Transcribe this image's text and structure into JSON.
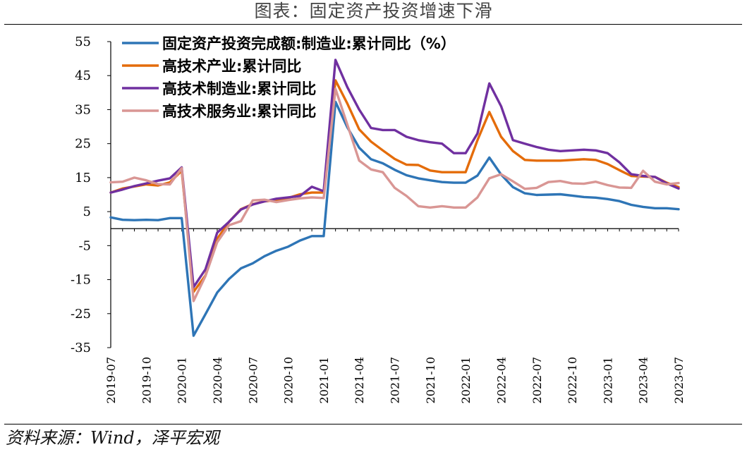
{
  "title": "图表：固定资产投资增速下滑",
  "source": "资料来源：Wind，泽平宏观",
  "chart_data": {
    "type": "line",
    "title": "图表：固定资产投资增速下滑",
    "xlabel": "",
    "ylabel": "",
    "ylim": [
      -35,
      55
    ],
    "y_ticks": [
      55,
      45,
      35,
      25,
      15,
      5,
      -5,
      -15,
      -25,
      -35
    ],
    "x": [
      "2019-07",
      "2019-08",
      "2019-09",
      "2019-10",
      "2019-11",
      "2019-12",
      "2020-01",
      "2020-02",
      "2020-03",
      "2020-04",
      "2020-05",
      "2020-06",
      "2020-07",
      "2020-08",
      "2020-09",
      "2020-10",
      "2020-11",
      "2020-12",
      "2021-01",
      "2021-02",
      "2021-03",
      "2021-04",
      "2021-05",
      "2021-06",
      "2021-07",
      "2021-08",
      "2021-09",
      "2021-10",
      "2021-11",
      "2021-12",
      "2022-01",
      "2022-02",
      "2022-03",
      "2022-04",
      "2022-05",
      "2022-06",
      "2022-07",
      "2022-08",
      "2022-09",
      "2022-10",
      "2022-11",
      "2022-12",
      "2023-01",
      "2023-02",
      "2023-03",
      "2023-04",
      "2023-05",
      "2023-06",
      "2023-07"
    ],
    "x_tick_labels": [
      "2019-07",
      "2019-10",
      "2020-01",
      "2020-04",
      "2020-07",
      "2020-10",
      "2021-01",
      "2021-04",
      "2021-07",
      "2021-10",
      "2022-01",
      "2022-04",
      "2022-07",
      "2022-10",
      "2023-01",
      "2023-04",
      "2023-07"
    ],
    "legend_position": "top-left",
    "grid": false,
    "series": [
      {
        "name": "固定资产投资完成额:制造业:累计同比（%）",
        "color": "#2e75b6",
        "values": [
          3.3,
          2.6,
          2.5,
          2.6,
          2.5,
          3.1,
          3.1,
          -31.5,
          -25.2,
          -18.8,
          -14.8,
          -11.7,
          -10.2,
          -8.1,
          -6.5,
          -5.3,
          -3.5,
          -2.2,
          -2.2,
          37.3,
          29.8,
          23.8,
          20.4,
          19.2,
          17.3,
          15.7,
          14.8,
          14.2,
          13.7,
          13.5,
          13.5,
          15.6,
          20.9,
          15.9,
          12.2,
          10.4,
          9.9,
          10.0,
          10.1,
          9.7,
          9.3,
          9.1,
          8.7,
          8.1,
          7.0,
          6.4,
          6.0,
          6.0,
          5.7
        ]
      },
      {
        "name": "高技术产业:累计同比",
        "color": "#e46c0a",
        "values": [
          10.6,
          11.8,
          12.4,
          13.0,
          12.7,
          13.6,
          17.0,
          -18.6,
          -13.8,
          -3.0,
          2.0,
          5.7,
          7.2,
          8.0,
          8.4,
          9.0,
          10.1,
          10.6,
          10.6,
          43.6,
          36.8,
          29.2,
          25.6,
          23.0,
          20.5,
          18.8,
          18.7,
          17.1,
          16.6,
          16.6,
          16.6,
          26.0,
          34.3,
          27.0,
          22.8,
          20.2,
          20.0,
          20.0,
          20.0,
          20.2,
          20.4,
          20.2,
          19.0,
          17.2,
          15.5,
          15.3,
          15.2,
          13.5,
          12.2
        ]
      },
      {
        "name": "高技术制造业:累计同比",
        "color": "#7030a0",
        "values": [
          10.6,
          11.5,
          12.5,
          13.3,
          14.1,
          14.8,
          18.0,
          -17.2,
          -12.0,
          -1.2,
          2.0,
          5.6,
          7.1,
          8.0,
          8.8,
          9.2,
          9.6,
          12.3,
          11.0,
          49.6,
          41.6,
          35.0,
          29.6,
          29.0,
          29.0,
          27.0,
          26.0,
          25.4,
          25.0,
          22.2,
          22.2,
          28.0,
          42.7,
          36.0,
          26.0,
          25.0,
          24.0,
          23.2,
          22.8,
          23.0,
          23.2,
          23.0,
          22.2,
          19.5,
          16.0,
          15.5,
          15.2,
          13.3,
          11.8
        ]
      },
      {
        "name": "高技术服务业:累计同比",
        "color": "#d99694",
        "values": [
          13.6,
          13.8,
          15.0,
          14.2,
          13.1,
          13.0,
          17.8,
          -21.3,
          -14.0,
          -4.0,
          1.0,
          2.2,
          8.3,
          8.5,
          7.8,
          8.4,
          8.9,
          9.2,
          9.0,
          41.1,
          30.6,
          20.0,
          17.4,
          16.6,
          12.0,
          9.6,
          6.6,
          6.2,
          6.6,
          6.2,
          6.2,
          9.2,
          14.8,
          16.0,
          13.9,
          11.7,
          12.0,
          13.7,
          14.0,
          13.3,
          13.2,
          13.8,
          12.8,
          12.1,
          12.0,
          17.0,
          13.8,
          13.0,
          13.4
        ]
      }
    ]
  }
}
